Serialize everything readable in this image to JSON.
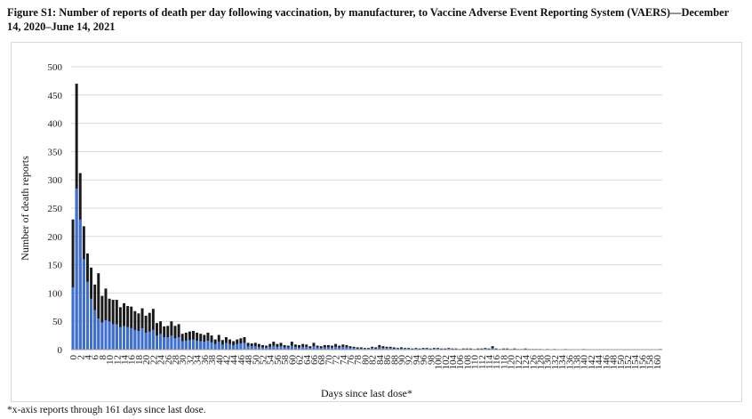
{
  "figure": {
    "title": "Figure S1: Number of reports of death per day following vaccination, by manufacturer, to Vaccine Adverse Event Reporting System (VAERS)—December 14, 2020–June 14, 2021",
    "footnote": "*x-axis reports through 161 days since last dose."
  },
  "colors": {
    "total": "#1a1a1a",
    "blue": "#3b6fd6",
    "grid": "#d9d9d9"
  },
  "chart_data": {
    "type": "bar",
    "title": "Figure S1: Number of reports of death per day following vaccination, by manufacturer, to Vaccine Adverse Event Reporting System (VAERS)—December 14, 2020–June 14, 2021",
    "xlabel": "Days since last dose*",
    "ylabel": "Number of death reports",
    "ylim": [
      0,
      500
    ],
    "yticks": [
      0,
      50,
      100,
      150,
      200,
      250,
      300,
      350,
      400,
      450,
      500
    ],
    "xticks": [
      "0",
      "2",
      "4",
      "6",
      "8",
      "10",
      "12",
      "14",
      "16",
      "18",
      "20",
      "22",
      "24",
      "26",
      "28",
      "30",
      "32",
      "34",
      "36",
      "38",
      "40",
      "42",
      "44",
      "46",
      "48",
      "50",
      "52",
      "54",
      "56",
      "58",
      "60",
      "62",
      "64",
      "66",
      "68",
      "70",
      "72",
      "74",
      "76",
      "78",
      "80",
      "82",
      "84",
      "86",
      "88",
      "90",
      "92",
      "94",
      "96",
      "98",
      "100",
      "102",
      "104",
      "106",
      "108",
      "110",
      "112",
      "114",
      "116",
      "118",
      "120",
      "122",
      "124",
      "126",
      "128",
      "130",
      "132",
      "134",
      "136",
      "138",
      "140",
      "142",
      "144",
      "146",
      "148",
      "150",
      "152",
      "154",
      "156",
      "158",
      "160"
    ],
    "x": [
      0,
      1,
      2,
      3,
      4,
      5,
      6,
      7,
      8,
      9,
      10,
      11,
      12,
      13,
      14,
      15,
      16,
      17,
      18,
      19,
      20,
      21,
      22,
      23,
      24,
      25,
      26,
      27,
      28,
      29,
      30,
      31,
      32,
      33,
      34,
      35,
      36,
      37,
      38,
      39,
      40,
      41,
      42,
      43,
      44,
      45,
      46,
      47,
      48,
      49,
      50,
      51,
      52,
      53,
      54,
      55,
      56,
      57,
      58,
      59,
      60,
      61,
      62,
      63,
      64,
      65,
      66,
      67,
      68,
      69,
      70,
      71,
      72,
      73,
      74,
      75,
      76,
      77,
      78,
      79,
      80,
      81,
      82,
      83,
      84,
      85,
      86,
      87,
      88,
      89,
      90,
      91,
      92,
      93,
      94,
      95,
      96,
      97,
      98,
      99,
      100,
      101,
      102,
      103,
      104,
      105,
      106,
      107,
      108,
      109,
      110,
      111,
      112,
      113,
      114,
      115,
      116,
      117,
      118,
      119,
      120,
      121,
      122,
      123,
      124,
      125,
      126,
      127,
      128,
      129,
      130,
      131,
      132,
      133,
      134,
      135,
      136,
      137,
      138,
      139,
      140,
      141,
      142,
      143,
      144,
      145,
      146,
      147,
      148,
      149,
      150,
      151,
      152,
      153,
      154,
      155,
      156,
      157,
      158,
      159,
      160,
      161
    ],
    "series": [
      {
        "values": [
          230,
          470,
          312,
          218,
          170,
          145,
          115,
          135,
          95,
          108,
          90,
          88,
          88,
          75,
          82,
          77,
          76,
          68,
          64,
          73,
          60,
          65,
          72,
          47,
          50,
          41,
          42,
          50,
          42,
          45,
          28,
          30,
          32,
          33,
          30,
          28,
          26,
          30,
          25,
          18,
          26,
          17,
          22,
          18,
          15,
          18,
          20,
          22,
          12,
          11,
          12,
          10,
          8,
          7,
          10,
          14,
          10,
          12,
          8,
          7,
          14,
          9,
          8,
          10,
          9,
          6,
          12,
          7,
          6,
          8,
          8,
          7,
          10,
          7,
          9,
          8,
          6,
          5,
          4,
          4,
          3,
          3,
          5,
          4,
          8,
          6,
          5,
          5,
          4,
          3,
          4,
          3,
          3,
          2,
          3,
          2,
          3,
          3,
          2,
          3,
          3,
          2,
          2,
          3,
          2,
          2,
          1,
          2,
          2,
          2,
          1,
          2,
          2,
          3,
          2,
          6,
          2,
          1,
          2,
          2,
          1,
          2,
          1,
          1,
          2,
          1,
          1,
          1,
          1,
          0,
          1,
          0,
          1,
          0,
          0,
          1,
          0,
          0,
          0,
          0,
          1,
          0,
          0,
          0,
          0,
          0,
          0,
          0,
          0,
          0,
          0,
          0,
          0,
          0,
          0,
          0,
          0,
          0,
          0,
          0,
          0,
          1
        ]
      },
      {
        "values": [
          110,
          285,
          230,
          160,
          120,
          90,
          70,
          55,
          48,
          52,
          50,
          45,
          45,
          40,
          42,
          40,
          38,
          35,
          33,
          38,
          30,
          32,
          35,
          25,
          28,
          22,
          22,
          25,
          20,
          22,
          15,
          16,
          17,
          18,
          16,
          15,
          14,
          16,
          13,
          10,
          14,
          9,
          12,
          10,
          8,
          10,
          11,
          12,
          6,
          6,
          6,
          5,
          4,
          4,
          5,
          7,
          5,
          6,
          4,
          4,
          7,
          5,
          4,
          5,
          5,
          3,
          6,
          4,
          3,
          4,
          4,
          4,
          5,
          4,
          5,
          4,
          3,
          3,
          2,
          2,
          2,
          2,
          3,
          2,
          4,
          3,
          3,
          3,
          2,
          2,
          2,
          2,
          2,
          1,
          2,
          1,
          2,
          2,
          1,
          2,
          2,
          1,
          1,
          2,
          1,
          1,
          1,
          1,
          1,
          1,
          1,
          1,
          1,
          2,
          1,
          3,
          1,
          1,
          1,
          1,
          1,
          1,
          1,
          1,
          1,
          1,
          1,
          1,
          1,
          0,
          1,
          0,
          1,
          0,
          0,
          1,
          0,
          0,
          0,
          0,
          1,
          0,
          0,
          0,
          0,
          0,
          0,
          0,
          0,
          0,
          0,
          0,
          0,
          0,
          0,
          0,
          0,
          0,
          0,
          0,
          0,
          1
        ]
      }
    ]
  }
}
